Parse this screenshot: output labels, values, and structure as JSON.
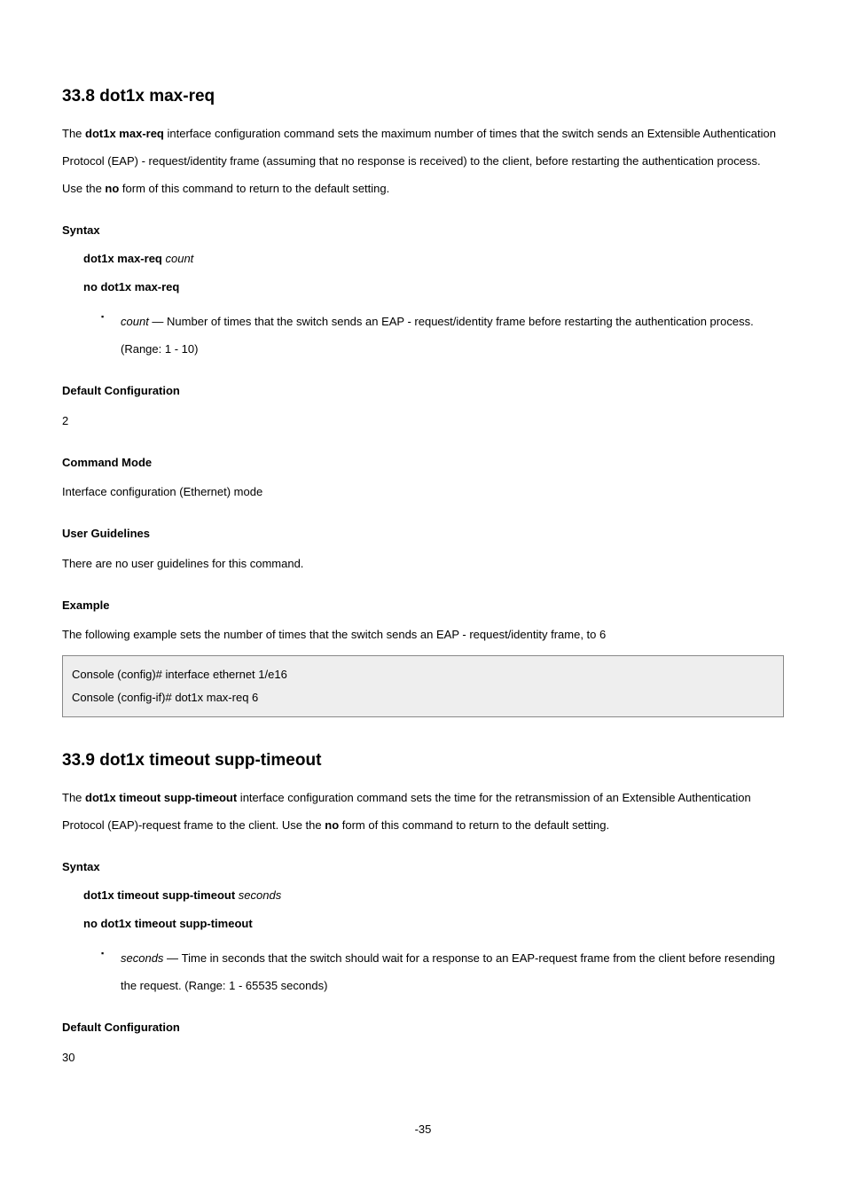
{
  "sec1": {
    "title": "33.8 dot1x max-req",
    "intro_1": "The ",
    "intro_cmd1": "dot1x max-req",
    "intro_2": " interface configuration command sets the maximum number of times that the switch sends an Extensible Authentication Protocol (EAP) - request/identity frame (assuming that no response is received) to the client, before restarting the authentication process. Use the ",
    "intro_no": "no",
    "intro_3": " form of this command to return to the default setting.",
    "syntax_head": "Syntax",
    "syntax_l1_a": "dot1x max-req ",
    "syntax_l1_b": "count",
    "syntax_l2": "no dot1x max-req",
    "param_lead": "count — ",
    "param_text": "Number of times that the switch sends an EAP - request/identity frame before restarting the authentication process. (Range: 1 - 10)",
    "default_head": "Default Configuration",
    "default_text": "2",
    "mode_head": "Command Mode",
    "mode_text": "Interface configuration (Ethernet) mode",
    "guide_head": "User Guidelines",
    "guide_text": "There are no user guidelines for this command.",
    "ex_head": "Example",
    "ex_text": "The following example sets the number of times that the switch sends an EAP - request/identity frame, to 6",
    "code_l1": "Console (config)# interface ethernet 1/e16",
    "code_l2": "Console (config-if)# dot1x max-req 6"
  },
  "sec2": {
    "title": "33.9 dot1x timeout supp-timeout",
    "intro_1": "The ",
    "intro_cmd1": "dot1x timeout supp-timeout",
    "intro_2": " interface configuration command sets the time for the retransmission of an Extensible Authentication Protocol (EAP)-request frame to the client. Use the ",
    "intro_no": "no",
    "intro_3": " form of this command to return to the default setting.",
    "syntax_head": "Syntax",
    "syntax_l1_a": "dot1x timeout supp-timeout ",
    "syntax_l1_b": "seconds",
    "syntax_l2": "no dot1x timeout supp-timeout",
    "param_lead": "seconds — ",
    "param_text": "Time in seconds that the switch should wait for a response to an EAP-request frame from the client before resending the request. (Range: 1 - 65535 seconds)",
    "default_head": "Default Configuration",
    "default_text": "30"
  },
  "page_number": "-35"
}
